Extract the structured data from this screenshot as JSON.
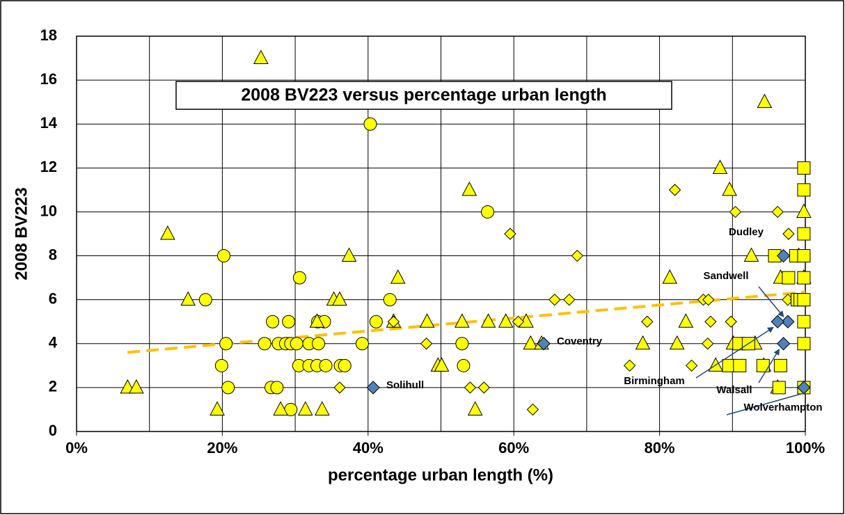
{
  "chart_data": {
    "type": "scatter",
    "title": "2008 BV223 versus percentage urban length",
    "xlabel": "percentage urban length (%)",
    "ylabel": "2008 BV223",
    "xlim": [
      0,
      100
    ],
    "ylim": [
      0,
      18
    ],
    "xticks": [
      {
        "value": 0,
        "label": "0%"
      },
      {
        "value": 20,
        "label": "20%"
      },
      {
        "value": 40,
        "label": "40%"
      },
      {
        "value": 60,
        "label": "60%"
      },
      {
        "value": 80,
        "label": "80%"
      },
      {
        "value": 100,
        "label": "100%"
      }
    ],
    "xgrid": [
      0,
      10,
      20,
      30,
      40,
      50,
      60,
      70,
      80,
      90,
      100
    ],
    "yticks": [
      0,
      2,
      4,
      6,
      8,
      10,
      12,
      14,
      16,
      18
    ],
    "grid": true,
    "series": [
      {
        "marker": "circle",
        "color": "#ffff00",
        "x": [
          17.7,
          20.2,
          19.9,
          20.5,
          20.8,
          25.8,
          26.9,
          26.7,
          27.5,
          27.7,
          28.7,
          29.1,
          29.4,
          29.4,
          30.2,
          30.5,
          30.6,
          31.9,
          31.9,
          33.1,
          33.2,
          33.0,
          34.0,
          34.2,
          36.2,
          36.8,
          39.2,
          40.3,
          41.1,
          43.0,
          52.9,
          53.1,
          56.4
        ],
        "values": [
          6,
          8,
          3,
          4,
          2,
          4,
          5,
          2,
          2,
          4,
          4,
          5,
          1,
          4,
          4,
          3,
          7,
          3,
          4,
          5,
          4,
          3,
          5,
          3,
          3,
          3,
          4,
          14,
          5,
          6,
          4,
          3,
          10
        ]
      },
      {
        "marker": "triangle",
        "color": "#ffff00",
        "x": [
          7,
          8.2,
          12.5,
          15.3,
          19.3,
          25.3,
          28,
          31.4,
          33,
          33.7,
          35.3,
          36.1,
          37.4,
          43.5,
          44.1,
          48.1,
          49.6,
          50.1,
          52.9,
          53.9,
          54.7,
          56.5,
          58.9,
          61.7,
          62.3,
          63.8,
          77.7,
          81.4,
          82.4,
          83.6,
          87.7,
          88.3,
          89.6,
          90.1,
          92.6,
          93.1,
          94.3,
          94.4,
          96.2,
          96.6,
          99.1,
          99.8,
          99.8
        ],
        "values": [
          2,
          2,
          9,
          6,
          1,
          17,
          1,
          1,
          5,
          1,
          6,
          6,
          8,
          5,
          7,
          5,
          3,
          3,
          5,
          11,
          1,
          5,
          5,
          5,
          4,
          4,
          4,
          7,
          4,
          5,
          3,
          12,
          11,
          4,
          8,
          4,
          3,
          15,
          2,
          7,
          8,
          10,
          7
        ]
      },
      {
        "marker": "diamond",
        "color": "#ffff00",
        "x": [
          36.1,
          43.5,
          48,
          54,
          55.9,
          59.5,
          60.6,
          62.6,
          65.6,
          67.6,
          68.7,
          75.9,
          78.3,
          82.1,
          84.4,
          86,
          86.7,
          86.6,
          87,
          89.8,
          90.4,
          96.2,
          97.7,
          97.6,
          98.7
        ],
        "values": [
          2,
          5,
          4,
          2,
          2,
          9,
          5,
          1,
          6,
          6,
          8,
          3,
          5,
          11,
          3,
          6,
          6,
          4,
          5,
          5,
          10,
          10,
          9,
          6,
          6
        ]
      },
      {
        "marker": "square",
        "color": "#ffff00",
        "x": [
          89.5,
          91,
          90.9,
          92.2,
          94.2,
          95.8,
          96.4,
          96.6,
          97.7,
          98.7,
          98.9,
          99.3,
          99.8,
          99.8,
          99.8,
          99.8,
          99.8,
          99.8,
          99.8,
          99.8,
          99.8
        ],
        "values": [
          3,
          3,
          4,
          4,
          3,
          8,
          2,
          3,
          7,
          8,
          6,
          6,
          12,
          11,
          9,
          8,
          7,
          6,
          5,
          4,
          2
        ]
      },
      {
        "marker": "bigdiamond",
        "color": "#4f81bd",
        "x": [
          40.7,
          64.1,
          97,
          97.6,
          96.2,
          97,
          99.8
        ],
        "values": [
          2,
          4,
          8,
          5,
          5,
          4,
          2
        ],
        "labels": [
          "Solihull",
          "Coventry",
          "Dudley",
          "Sandwell",
          "Birmingham",
          "Walsall",
          "Wolverhampton"
        ]
      }
    ],
    "trendline": {
      "x": [
        7,
        100
      ],
      "y": [
        3.6,
        6.35
      ],
      "color": "#ffc000"
    }
  }
}
